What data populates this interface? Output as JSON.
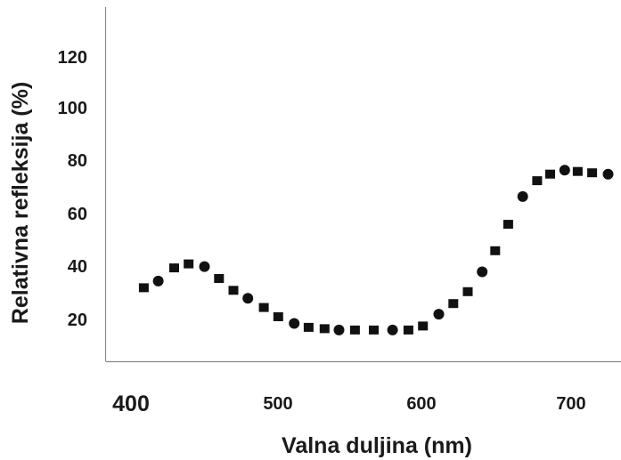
{
  "chart_data": {
    "type": "scatter",
    "title": "",
    "xlabel": "Valna duljina (nm)",
    "ylabel": "Relativna refleksija (%)",
    "xlim": [
      380,
      735
    ],
    "ylim": [
      0,
      140
    ],
    "x_ticks": [
      "400",
      "500",
      "600",
      "700"
    ],
    "y_ticks": [
      "20",
      "40",
      "60",
      "80",
      "100",
      "120"
    ],
    "grid": false,
    "marker_color": "#111111",
    "points": [
      {
        "x": 407,
        "y": 32
      },
      {
        "x": 417,
        "y": 34.5
      },
      {
        "x": 428,
        "y": 39.5
      },
      {
        "x": 438,
        "y": 41
      },
      {
        "x": 449,
        "y": 40
      },
      {
        "x": 459,
        "y": 35.5
      },
      {
        "x": 469,
        "y": 31
      },
      {
        "x": 479,
        "y": 28
      },
      {
        "x": 490,
        "y": 24.5
      },
      {
        "x": 500,
        "y": 21
      },
      {
        "x": 511,
        "y": 18.5
      },
      {
        "x": 521,
        "y": 17
      },
      {
        "x": 532,
        "y": 16.5
      },
      {
        "x": 542,
        "y": 16
      },
      {
        "x": 553,
        "y": 16
      },
      {
        "x": 566,
        "y": 16
      },
      {
        "x": 579,
        "y": 16
      },
      {
        "x": 590,
        "y": 16
      },
      {
        "x": 600,
        "y": 17.5
      },
      {
        "x": 611,
        "y": 22
      },
      {
        "x": 621,
        "y": 26
      },
      {
        "x": 631,
        "y": 30.5
      },
      {
        "x": 641,
        "y": 38
      },
      {
        "x": 650,
        "y": 46
      },
      {
        "x": 659,
        "y": 56
      },
      {
        "x": 669,
        "y": 66.5
      },
      {
        "x": 679,
        "y": 72.5
      },
      {
        "x": 688,
        "y": 75
      },
      {
        "x": 698,
        "y": 76.5
      },
      {
        "x": 707,
        "y": 76
      },
      {
        "x": 717,
        "y": 75.5
      },
      {
        "x": 728,
        "y": 75
      }
    ]
  }
}
